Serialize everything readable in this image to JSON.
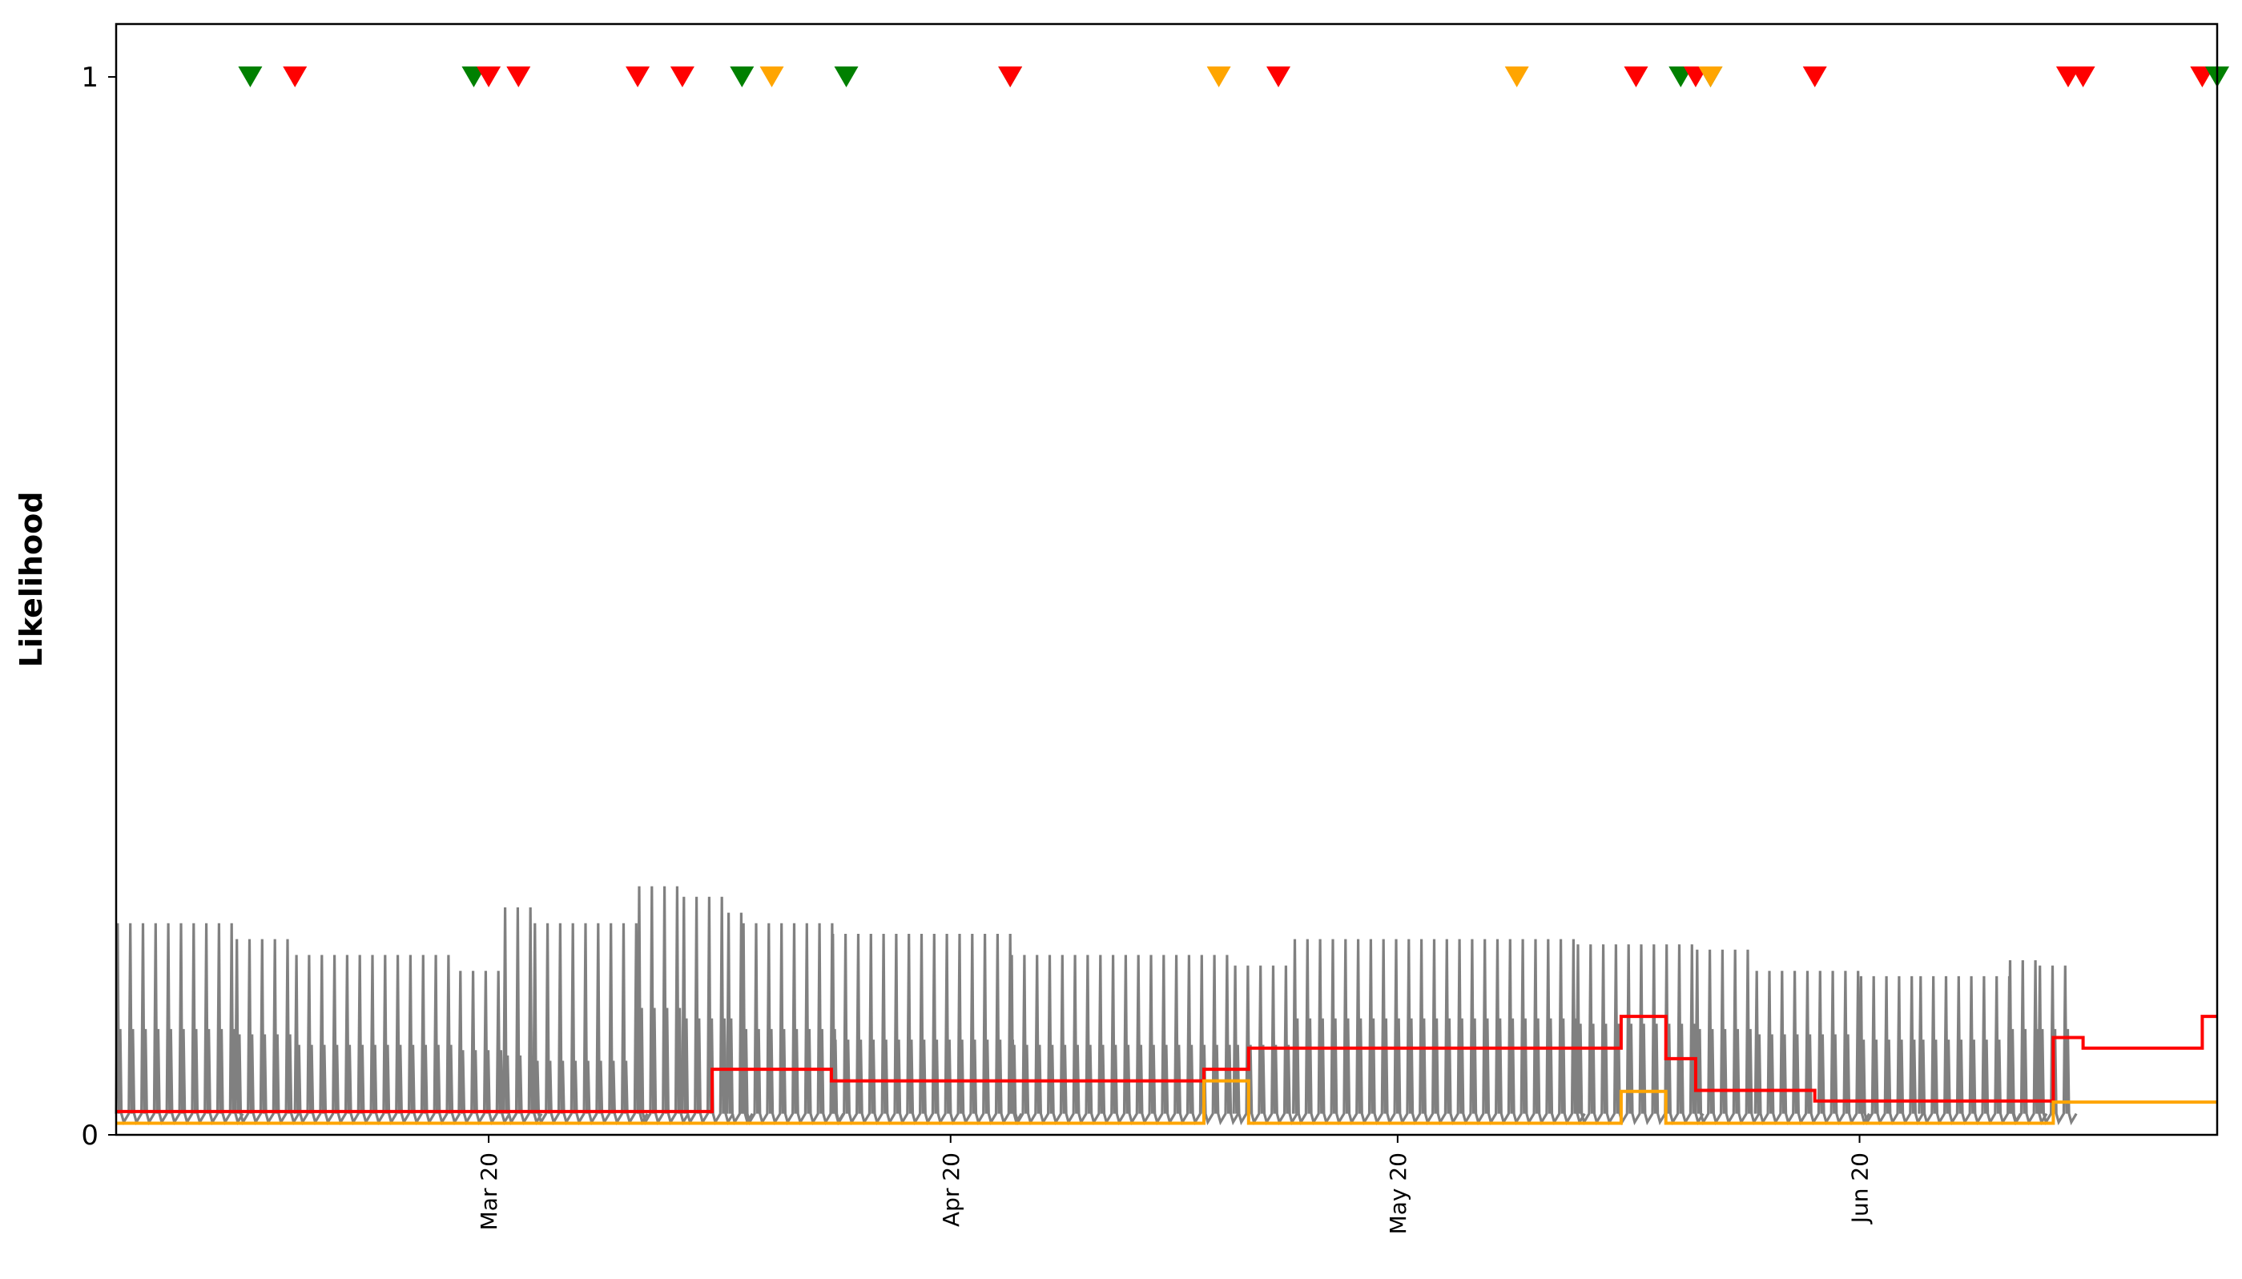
{
  "chart_data": {
    "type": "line",
    "title": "",
    "xlabel": "",
    "ylabel": "Likelihood",
    "ylim": [
      0,
      1.05
    ],
    "yticks": [
      {
        "value": 0,
        "label": "0"
      },
      {
        "value": 1,
        "label": "1"
      }
    ],
    "xlim": [
      "2020-02-24",
      "2020-07-04"
    ],
    "xticks": [
      {
        "date": "2020-03-20",
        "label": "Mar 20"
      },
      {
        "date": "2020-04-20",
        "label": "Apr 20"
      },
      {
        "date": "2020-05-20",
        "label": "May 20"
      },
      {
        "date": "2020-06-20",
        "label": "Jun 20"
      }
    ],
    "grid": false,
    "legend": "none",
    "colors": {
      "oscillation": "#808080",
      "red": "#ff0000",
      "orange": "#ffa500",
      "green": "#008000"
    },
    "oscillation": {
      "name": "",
      "color": "#808080",
      "segments": [
        {
          "start": "2020-02-24",
          "end": "2020-03-03",
          "peak": 0.2,
          "mid": 0.1,
          "low": 0.02
        },
        {
          "start": "2020-03-03",
          "end": "2020-03-07",
          "peak": 0.185,
          "mid": 0.095,
          "low": 0.02
        },
        {
          "start": "2020-03-07",
          "end": "2020-03-18",
          "peak": 0.17,
          "mid": 0.085,
          "low": 0.02
        },
        {
          "start": "2020-03-18",
          "end": "2020-03-21",
          "peak": 0.155,
          "mid": 0.08,
          "low": 0.02
        },
        {
          "start": "2020-03-21",
          "end": "2020-03-23",
          "peak": 0.215,
          "mid": 0.075,
          "low": 0.02
        },
        {
          "start": "2020-03-23",
          "end": "2020-03-30",
          "peak": 0.2,
          "mid": 0.07,
          "low": 0.02
        },
        {
          "start": "2020-03-30",
          "end": "2020-04-02",
          "peak": 0.235,
          "mid": 0.12,
          "low": 0.02
        },
        {
          "start": "2020-04-02",
          "end": "2020-04-05",
          "peak": 0.225,
          "mid": 0.11,
          "low": 0.02
        },
        {
          "start": "2020-04-05",
          "end": "2020-04-06",
          "peak": 0.21,
          "mid": 0.11,
          "low": 0.02
        },
        {
          "start": "2020-04-06",
          "end": "2020-04-12",
          "peak": 0.2,
          "mid": 0.1,
          "low": 0.02
        },
        {
          "start": "2020-04-12",
          "end": "2020-04-24",
          "peak": 0.19,
          "mid": 0.09,
          "low": 0.02
        },
        {
          "start": "2020-04-24",
          "end": "2020-05-09",
          "peak": 0.17,
          "mid": 0.085,
          "low": 0.02
        },
        {
          "start": "2020-05-09",
          "end": "2020-05-13",
          "peak": 0.16,
          "mid": 0.085,
          "low": 0.02
        },
        {
          "start": "2020-05-13",
          "end": "2020-06-01",
          "peak": 0.185,
          "mid": 0.11,
          "low": 0.02
        },
        {
          "start": "2020-06-01",
          "end": "2020-06-09",
          "peak": 0.18,
          "mid": 0.105,
          "low": 0.02
        },
        {
          "start": "2020-06-09",
          "end": "2020-06-13",
          "peak": 0.175,
          "mid": 0.1,
          "low": 0.02
        },
        {
          "start": "2020-06-13",
          "end": "2020-06-20",
          "peak": 0.155,
          "mid": 0.095,
          "low": 0.02
        },
        {
          "start": "2020-06-20",
          "end": "2020-06-24",
          "peak": 0.15,
          "mid": 0.09,
          "low": 0.02
        },
        {
          "start": "2020-06-24",
          "end": "2020-06-30",
          "peak": 0.15,
          "mid": 0.09,
          "low": 0.02
        },
        {
          "start": "2020-06-30",
          "end": "2020-07-02",
          "peak": 0.165,
          "mid": 0.1,
          "low": 0.02
        },
        {
          "start": "2020-07-02",
          "end": "2020-07-04",
          "peak": 0.16,
          "mid": 0.1,
          "low": 0.02
        }
      ]
    },
    "series": [
      {
        "name": "",
        "color": "#ff0000",
        "points": [
          {
            "date": "2020-02-24",
            "value": 0.022
          },
          {
            "date": "2020-04-04",
            "value": 0.022
          },
          {
            "date": "2020-04-04",
            "value": 0.062
          },
          {
            "date": "2020-04-12",
            "value": 0.062
          },
          {
            "date": "2020-04-12",
            "value": 0.051
          },
          {
            "date": "2020-05-07",
            "value": 0.051
          },
          {
            "date": "2020-05-07",
            "value": 0.062
          },
          {
            "date": "2020-05-10",
            "value": 0.062
          },
          {
            "date": "2020-05-10",
            "value": 0.082
          },
          {
            "date": "2020-06-04",
            "value": 0.082
          },
          {
            "date": "2020-06-04",
            "value": 0.112
          },
          {
            "date": "2020-06-07",
            "value": 0.112
          },
          {
            "date": "2020-06-07",
            "value": 0.072
          },
          {
            "date": "2020-06-09",
            "value": 0.072
          },
          {
            "date": "2020-06-09",
            "value": 0.042
          },
          {
            "date": "2020-06-17",
            "value": 0.042
          },
          {
            "date": "2020-06-17",
            "value": 0.032
          },
          {
            "date": "2020-07-03",
            "value": 0.032
          },
          {
            "date": "2020-07-03",
            "value": 0.092
          },
          {
            "date": "2020-07-05",
            "value": 0.092
          },
          {
            "date": "2020-07-05",
            "value": 0.082
          },
          {
            "date": "2020-07-13",
            "value": 0.082
          },
          {
            "date": "2020-07-13",
            "value": 0.112
          },
          {
            "date": "2020-07-14",
            "value": 0.112
          }
        ]
      },
      {
        "name": "",
        "color": "#ffa500",
        "points": [
          {
            "date": "2020-02-24",
            "value": 0.011
          },
          {
            "date": "2020-05-07",
            "value": 0.011
          },
          {
            "date": "2020-05-07",
            "value": 0.051
          },
          {
            "date": "2020-05-10",
            "value": 0.051
          },
          {
            "date": "2020-05-10",
            "value": 0.011
          },
          {
            "date": "2020-06-04",
            "value": 0.011
          },
          {
            "date": "2020-06-04",
            "value": 0.041
          },
          {
            "date": "2020-06-07",
            "value": 0.041
          },
          {
            "date": "2020-06-07",
            "value": 0.011
          },
          {
            "date": "2020-07-03",
            "value": 0.011
          },
          {
            "date": "2020-07-03",
            "value": 0.031
          },
          {
            "date": "2020-07-14",
            "value": 0.031
          }
        ]
      }
    ],
    "markers": [
      {
        "date": "2020-03-04",
        "value": 1,
        "color": "#008000"
      },
      {
        "date": "2020-03-07",
        "value": 1,
        "color": "#ff0000"
      },
      {
        "date": "2020-03-19",
        "value": 1,
        "color": "#008000"
      },
      {
        "date": "2020-03-20",
        "value": 1,
        "color": "#ff0000"
      },
      {
        "date": "2020-03-22",
        "value": 1,
        "color": "#ff0000"
      },
      {
        "date": "2020-03-30",
        "value": 1,
        "color": "#ff0000"
      },
      {
        "date": "2020-04-02",
        "value": 1,
        "color": "#ff0000"
      },
      {
        "date": "2020-04-06",
        "value": 1,
        "color": "#008000"
      },
      {
        "date": "2020-04-08",
        "value": 1,
        "color": "#ffa500"
      },
      {
        "date": "2020-04-13",
        "value": 1,
        "color": "#008000"
      },
      {
        "date": "2020-04-24",
        "value": 1,
        "color": "#008000"
      },
      {
        "date": "2020-04-24",
        "value": 1,
        "color": "#ff0000"
      },
      {
        "date": "2020-05-08",
        "value": 1,
        "color": "#ffa500"
      },
      {
        "date": "2020-05-12",
        "value": 1,
        "color": "#ff0000"
      },
      {
        "date": "2020-05-28",
        "value": 1,
        "color": "#ffa500"
      },
      {
        "date": "2020-06-05",
        "value": 1,
        "color": "#ff0000"
      },
      {
        "date": "2020-06-08",
        "value": 1,
        "color": "#008000"
      },
      {
        "date": "2020-06-10",
        "value": 1,
        "color": "#008000"
      },
      {
        "date": "2020-06-09",
        "value": 1,
        "color": "#ff0000"
      },
      {
        "date": "2020-06-10",
        "value": 1,
        "color": "#ffa500"
      },
      {
        "date": "2020-06-17",
        "value": 1,
        "color": "#ff0000"
      },
      {
        "date": "2020-07-04",
        "value": 1,
        "color": "#ffa500"
      },
      {
        "date": "2020-07-04",
        "value": 1,
        "color": "#ff0000"
      },
      {
        "date": "2020-07-05",
        "value": 1,
        "color": "#ff0000"
      },
      {
        "date": "2020-07-13",
        "value": 1,
        "color": "#ffa500"
      },
      {
        "date": "2020-07-13",
        "value": 1,
        "color": "#ff0000"
      },
      {
        "date": "2020-07-14",
        "value": 1,
        "color": "#008000"
      }
    ]
  }
}
